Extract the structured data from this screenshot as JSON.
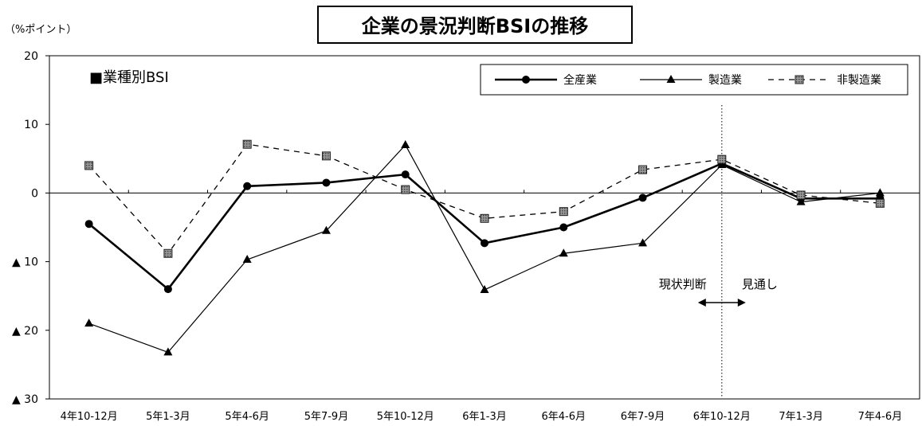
{
  "chart_data": {
    "type": "line",
    "title": "企業の景況判断BSIの推移",
    "subtitle": "■業種別BSI",
    "ylabel": "（%ポイント）",
    "ylim": [
      -30,
      20
    ],
    "yticks": [
      {
        "value": 20,
        "label": "20"
      },
      {
        "value": 10,
        "label": "10"
      },
      {
        "value": 0,
        "label": "0"
      },
      {
        "value": -10,
        "label": "▲ 10"
      },
      {
        "value": -20,
        "label": "▲ 20"
      },
      {
        "value": -30,
        "label": "▲ 30"
      }
    ],
    "categories": [
      "4年10-12月",
      "5年1-3月",
      "5年4-6月",
      "5年7-9月",
      "5年10-12月",
      "6年1-3月",
      "6年4-6月",
      "6年7-9月",
      "6年10-12月",
      "7年1-3月",
      "7年4-6月"
    ],
    "series": [
      {
        "name": "全産業",
        "marker": "circle",
        "style": "solid-bold",
        "values": [
          -4.5,
          -14.0,
          1.0,
          1.5,
          2.7,
          -7.3,
          -5.0,
          -0.7,
          4.3,
          -0.8,
          -0.8
        ]
      },
      {
        "name": "製造業",
        "marker": "triangle",
        "style": "solid",
        "values": [
          -19.0,
          -23.2,
          -9.7,
          -5.5,
          7.0,
          -14.1,
          -8.8,
          -7.3,
          4.1,
          -1.3,
          0.0
        ]
      },
      {
        "name": "非製造業",
        "marker": "square",
        "style": "dashed",
        "values": [
          4.0,
          -8.8,
          7.1,
          5.4,
          0.5,
          -3.7,
          -2.7,
          3.4,
          4.9,
          -0.3,
          -1.5
        ]
      }
    ],
    "divider_after_category": "6年10-12月",
    "annotations": {
      "left": "現状判断",
      "right": "見通し"
    },
    "legend_position": "top-right",
    "grid": false
  }
}
